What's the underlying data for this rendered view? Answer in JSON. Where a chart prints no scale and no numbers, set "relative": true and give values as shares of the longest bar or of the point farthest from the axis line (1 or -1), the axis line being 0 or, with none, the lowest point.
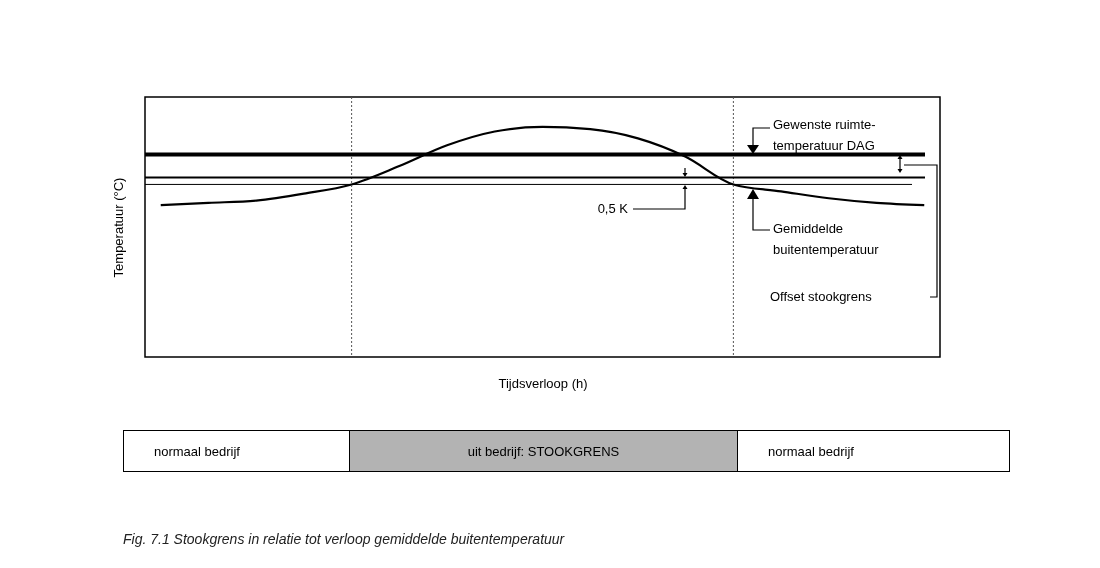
{
  "chart_data": {
    "type": "line",
    "title": "Fig. 7.1  Stookgrens in relatie tot verloop gemiddelde buitentemperatuur",
    "xlabel": "Tijdsverloop (h)",
    "ylabel": "Temperatuur (°C)",
    "relative": true,
    "color": "#000000",
    "categories": [
      null,
      null,
      null,
      null,
      null,
      null,
      null,
      null,
      null,
      null,
      null,
      null,
      null,
      null,
      null,
      null,
      null
    ],
    "values": [
      0.66,
      0.67,
      0.68,
      0.71,
      0.75,
      0.83,
      0.92,
      0.98,
      1,
      0.99,
      0.95,
      0.87,
      0.75,
      0.72,
      0.69,
      0.67,
      0.66
    ],
    "ref_lines": [
      {
        "axis": "y",
        "value": 0.88,
        "color": "#000000",
        "line_style": "solid"
      },
      {
        "axis": "y",
        "value": 0.78,
        "color": "#000000",
        "line_style": "solid"
      },
      {
        "axis": "y",
        "value": 0.75,
        "color": "#000000",
        "line_style": "solid"
      }
    ],
    "annotations": [
      "Gewenste ruimte-temperatuur DAG",
      "0,5 K",
      "Gemiddelde buitentemperatuur",
      "Offset stookgrens",
      "normaal bedrijf",
      "uit bedrijf: STOOKGRENS",
      "normaal bedrijf"
    ]
  }
}
